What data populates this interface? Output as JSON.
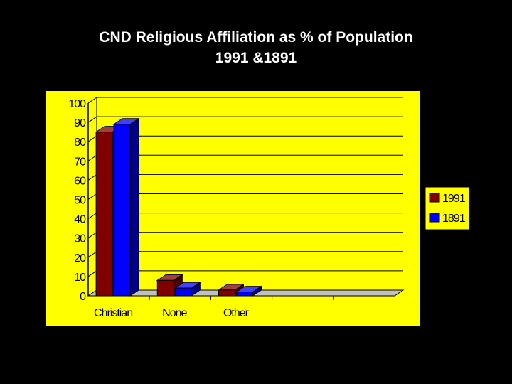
{
  "slide": {
    "title_line1": "CND Religious Affiliation as % of Population",
    "title_line2": "1991 &1891"
  },
  "colors": {
    "background": "#000000",
    "plot_area": "#FFFF00",
    "series_1991": "#800000",
    "series_1891": "#0000FF"
  },
  "chart_data": {
    "type": "bar",
    "style": "3d-clustered-column",
    "title": "CND Religious Affiliation as % of Population 1991 &1891",
    "xlabel": "",
    "ylabel": "",
    "categories": [
      "Christian",
      "None",
      "Other"
    ],
    "series": [
      {
        "name": "1991",
        "values": [
          85,
          8,
          3
        ],
        "color": "#800000"
      },
      {
        "name": "1891",
        "values": [
          89,
          4,
          2
        ],
        "color": "#0000FF"
      }
    ],
    "ylim": [
      0,
      100
    ],
    "yticks": [
      "0",
      "10",
      "20",
      "30",
      "40",
      "50",
      "60",
      "70",
      "80",
      "90",
      "100"
    ],
    "grid": true,
    "legend_position": "right"
  }
}
